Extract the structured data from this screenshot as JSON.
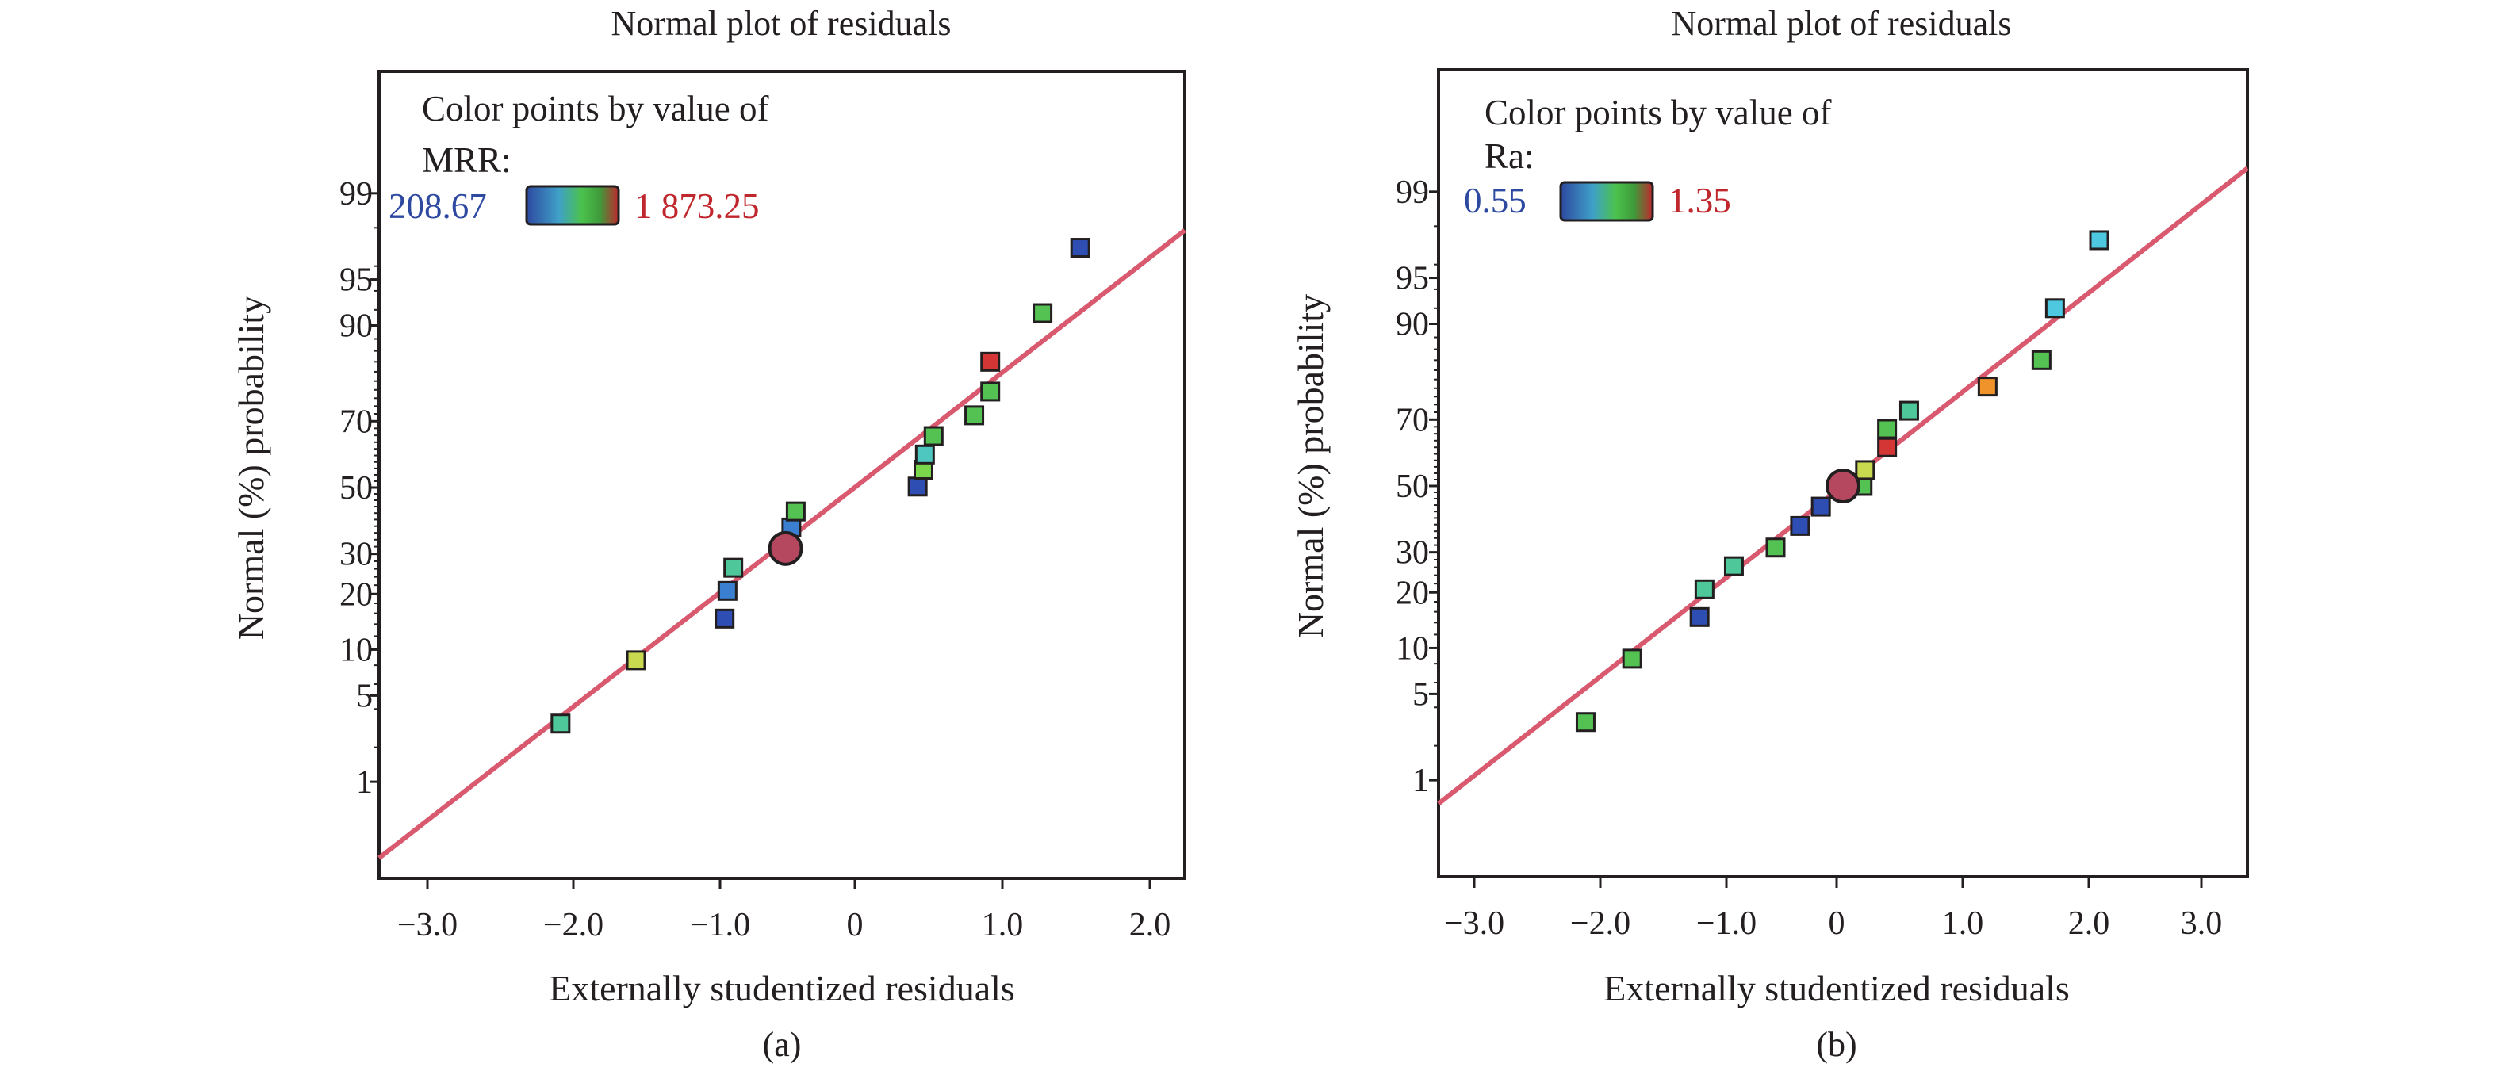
{
  "chart_data": [
    {
      "type": "scatter",
      "title": "Normal plot of residuals",
      "xlabel": "Externally studentized residuals",
      "ylabel": "Normal (%) probability",
      "panel_label": "(a)",
      "x_ticks": [
        "−3.0",
        "−2.0",
        "−1.0",
        "0",
        "1.0",
        "2.0"
      ],
      "y_ticks": [
        "1",
        "5",
        "10",
        "20",
        "30",
        "50",
        "70",
        "90",
        "95",
        "99"
      ],
      "xlim": [
        -3.3,
        2.25
      ],
      "ylim": [
        0.1,
        99.95
      ],
      "y_scale": "normal-probability",
      "grid": false,
      "legend": {
        "placement": "top-left",
        "title": "Color points by value of",
        "variable": "MRR:",
        "min_label": "208.67",
        "max_label": "1 873.25",
        "min_color": "#2d49a0",
        "max_color": "#c0272d"
      },
      "fit_line": {
        "color": "#d9596f",
        "x": [
          -3.3,
          2.25
        ],
        "y": [
          0.17,
          97.9
        ]
      },
      "points": [
        {
          "x": -2.05,
          "y": 3.1,
          "color": "#4ec79a"
        },
        {
          "x": -1.53,
          "y": 8.6,
          "color": "#c8d84f"
        },
        {
          "x": -0.92,
          "y": 15.0,
          "color": "#2e4eb4"
        },
        {
          "x": -0.9,
          "y": 20.7,
          "color": "#3a7fd0"
        },
        {
          "x": -0.86,
          "y": 26.3,
          "color": "#4ec79a"
        },
        {
          "x": -0.47,
          "y": 31.3,
          "color": "#6fd06d"
        },
        {
          "x": -0.46,
          "y": 37.6,
          "color": "#3a7fd0"
        },
        {
          "x": -0.43,
          "y": 42.5,
          "color": "#54c253"
        },
        {
          "x": 0.41,
          "y": 50.3,
          "color": "#2e4eb4"
        },
        {
          "x": 0.45,
          "y": 55.6,
          "color": "#7ad64a"
        },
        {
          "x": 0.46,
          "y": 60.3,
          "color": "#4ec7c0"
        },
        {
          "x": 0.52,
          "y": 65.8,
          "color": "#54c253"
        },
        {
          "x": 0.8,
          "y": 71.6,
          "color": "#54c253"
        },
        {
          "x": 0.91,
          "y": 77.6,
          "color": "#54c253"
        },
        {
          "x": 0.91,
          "y": 84.0,
          "color": "#d43535"
        },
        {
          "x": 1.27,
          "y": 91.6,
          "color": "#54c253"
        },
        {
          "x": 1.53,
          "y": 97.1,
          "color": "#2e4eb4"
        }
      ],
      "marker": {
        "x": -0.5,
        "y": 31.5,
        "label": "center",
        "color": "#b5485e"
      }
    },
    {
      "type": "scatter",
      "title": "Normal plot of residuals",
      "xlabel": "Externally studentized residuals",
      "ylabel": "Normal (%) probability",
      "panel_label": "(b)",
      "x_ticks": [
        "−3.0",
        "−2.0",
        "−1.0",
        "0",
        "1.0",
        "2.0",
        "3.0"
      ],
      "y_ticks": [
        "1",
        "5",
        "10",
        "20",
        "30",
        "50",
        "70",
        "90",
        "95",
        "99"
      ],
      "xlim": [
        -3.3,
        3.3
      ],
      "ylim": [
        0.1,
        99.95
      ],
      "y_scale": "normal-probability",
      "grid": false,
      "legend": {
        "placement": "top-left",
        "title": "Color points by value of",
        "variable": "Ra:",
        "min_label": "0.55",
        "max_label": "1.35",
        "min_color": "#2d49a0",
        "max_color": "#c0272d"
      },
      "fit_line": {
        "color": "#d9596f",
        "x": [
          -3.3,
          3.3
        ],
        "y": [
          0.6,
          99.4
        ]
      },
      "points": [
        {
          "x": -2.1,
          "y": 3.1,
          "color": "#54c253"
        },
        {
          "x": -1.72,
          "y": 8.6,
          "color": "#54c253"
        },
        {
          "x": -1.17,
          "y": 15.0,
          "color": "#2e4eb4"
        },
        {
          "x": -1.13,
          "y": 20.7,
          "color": "#4ec79a"
        },
        {
          "x": -0.89,
          "y": 26.3,
          "color": "#4ec79a"
        },
        {
          "x": -0.55,
          "y": 31.3,
          "color": "#54c253"
        },
        {
          "x": -0.35,
          "y": 37.6,
          "color": "#2e4eb4"
        },
        {
          "x": -0.18,
          "y": 43.5,
          "color": "#2e4eb4"
        },
        {
          "x": 0.16,
          "y": 50.0,
          "color": "#54c253"
        },
        {
          "x": 0.18,
          "y": 55.0,
          "color": "#c8d84f"
        },
        {
          "x": 0.36,
          "y": 62.0,
          "color": "#d43535"
        },
        {
          "x": 0.36,
          "y": 67.4,
          "color": "#54c253"
        },
        {
          "x": 0.54,
          "y": 72.4,
          "color": "#4ec79a"
        },
        {
          "x": 1.18,
          "y": 78.4,
          "color": "#f0932a"
        },
        {
          "x": 1.62,
          "y": 84.0,
          "color": "#54c253"
        },
        {
          "x": 1.73,
          "y": 92.0,
          "color": "#4ec7e0"
        },
        {
          "x": 2.09,
          "y": 97.4,
          "color": "#4ec7e0"
        }
      ],
      "marker": {
        "x": 0.0,
        "y": 50.0,
        "label": "center",
        "color": "#b5485e"
      }
    }
  ]
}
